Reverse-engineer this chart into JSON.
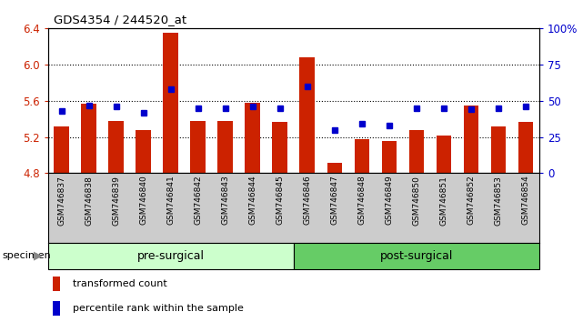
{
  "title": "GDS4354 / 244520_at",
  "categories": [
    "GSM746837",
    "GSM746838",
    "GSM746839",
    "GSM746840",
    "GSM746841",
    "GSM746842",
    "GSM746843",
    "GSM746844",
    "GSM746845",
    "GSM746846",
    "GSM746847",
    "GSM746848",
    "GSM746849",
    "GSM746850",
    "GSM746851",
    "GSM746852",
    "GSM746853",
    "GSM746854"
  ],
  "bar_values": [
    5.32,
    5.57,
    5.38,
    5.28,
    6.35,
    5.38,
    5.38,
    5.58,
    5.37,
    6.08,
    4.92,
    5.18,
    5.16,
    5.28,
    5.22,
    5.55,
    5.32,
    5.37
  ],
  "percentile_values": [
    43,
    47,
    46,
    42,
    58,
    45,
    45,
    46,
    45,
    60,
    30,
    34,
    33,
    45,
    45,
    44,
    45,
    46
  ],
  "bar_color": "#cc2200",
  "dot_color": "#0000cc",
  "ylim_left": [
    4.8,
    6.4
  ],
  "ylim_right": [
    0,
    100
  ],
  "yticks_left": [
    4.8,
    5.2,
    5.6,
    6.0,
    6.4
  ],
  "yticks_right": [
    0,
    25,
    50,
    75,
    100
  ],
  "grid_values": [
    6.0,
    5.6,
    5.2
  ],
  "pre_surgical_count": 9,
  "pre_surgical_label": "pre-surgical",
  "post_surgical_label": "post-surgical",
  "specimen_label": "specimen",
  "legend_bar_label": "transformed count",
  "legend_dot_label": "percentile rank within the sample",
  "pre_surgical_color": "#ccffcc",
  "post_surgical_color": "#66cc66",
  "xlabels_bg": "#cccccc",
  "plot_bg": "#ffffff"
}
